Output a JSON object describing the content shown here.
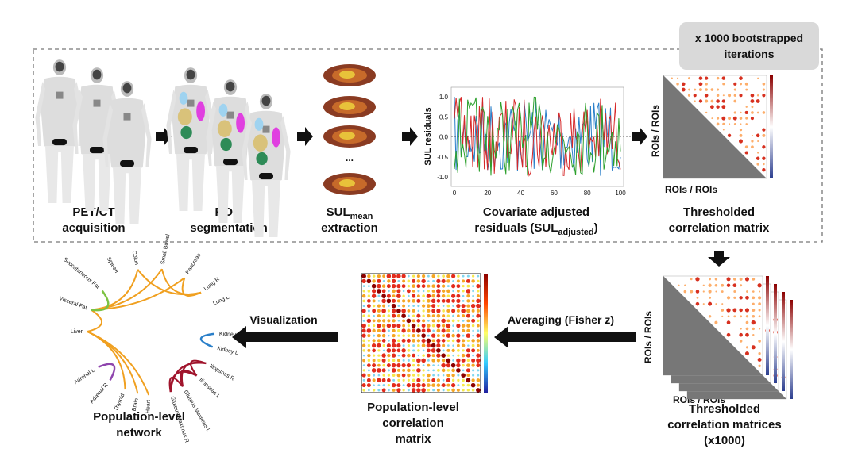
{
  "banner": [
    "x 1000 bootstrapped",
    "iterations"
  ],
  "pet": {
    "label": [
      "PET/CT",
      "acquisition"
    ]
  },
  "rois": {
    "label": [
      "ROIs",
      "segmentation"
    ]
  },
  "sul": {
    "ellipsis": "...",
    "label_main": "SUL",
    "label_sub": "mean",
    "label_line2": "extraction"
  },
  "residuals": {
    "y_axis_label": "SUL residuals",
    "yticks": [
      "1.0",
      "0.5",
      "0.0",
      "-0.5",
      "-1.0"
    ],
    "xticks": [
      0,
      20,
      40,
      60,
      80,
      100
    ],
    "label_line1": "Covariate adjusted",
    "label_line2_main": "residuals (SUL",
    "label_line2_sub": "adjusted",
    "label_line2_end": ")"
  },
  "matrix": {
    "row_label": "ROIs / ROIs",
    "col_label": "ROIs / ROIs",
    "label": [
      "Thresholded",
      "correlation matrix"
    ]
  },
  "matrices": {
    "row_label": "ROIs / ROIs",
    "col_label": "ROIs / ROIs",
    "label": [
      "Thresholded",
      "correlation matrices",
      "(x1000)"
    ]
  },
  "averaging": "Averaging (Fisher z)",
  "pop_matrix": {
    "label": [
      "Population-level",
      "correlation",
      "matrix"
    ]
  },
  "visualization": "Visualization",
  "network": {
    "nodes": [
      "Small Bowel",
      "Pancreas",
      "Lung R",
      "Lung L",
      "Kidney R",
      "Kidney L",
      "Iliopsoas R",
      "Iliopsoas L",
      "Gluteus Maximus L",
      "Gluteus Maximus R",
      "Heart",
      "Brain",
      "Thyroid",
      "Adrenal R",
      "Adrenal L",
      "Liver",
      "Visceral Fat",
      "Subcutaneous Fat",
      "Spleen",
      "Colon"
    ],
    "label": [
      "Population-level",
      "network"
    ]
  }
}
